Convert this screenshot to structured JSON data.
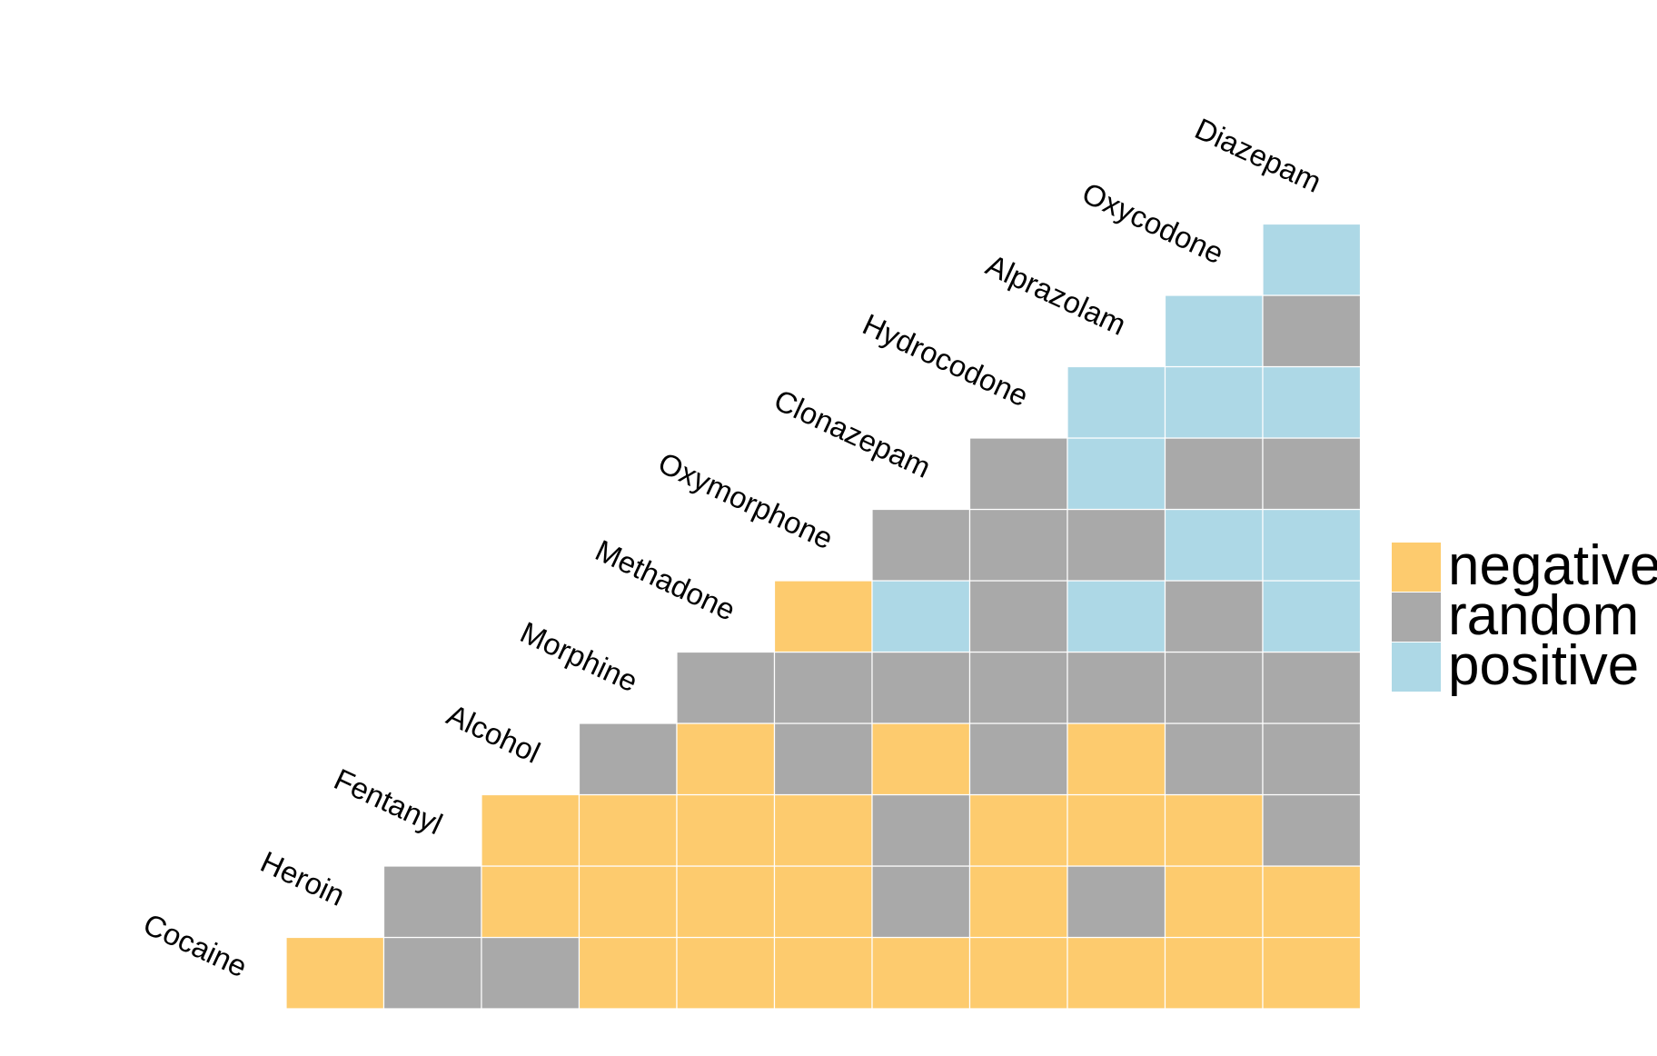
{
  "chart_data": {
    "type": "heatmap",
    "title": "",
    "xlabel": "",
    "ylabel": "",
    "grid": false,
    "legend_position": "right",
    "labels": [
      "Cocaine",
      "Heroin",
      "Fentanyl",
      "Alcohol",
      "Morphine",
      "Methadone",
      "Oxymorphone",
      "Clonazepam",
      "Hydrocodone",
      "Alprazolam",
      "Oxycodone",
      "Diazepam"
    ],
    "categories": [
      "negative",
      "random",
      "positive"
    ],
    "colors": {
      "negative": "#fdcb6e",
      "random": "#a9a9a9",
      "positive": "#add8e6"
    },
    "matrix": [
      [
        "negative",
        "random",
        "random",
        "negative",
        "negative",
        "negative",
        "negative",
        "negative",
        "negative",
        "negative",
        "negative"
      ],
      [
        "random",
        "negative",
        "negative",
        "negative",
        "negative",
        "random",
        "negative",
        "random",
        "negative",
        "negative"
      ],
      [
        "negative",
        "negative",
        "negative",
        "negative",
        "random",
        "negative",
        "negative",
        "negative",
        "random"
      ],
      [
        "random",
        "negative",
        "random",
        "negative",
        "random",
        "negative",
        "random",
        "random"
      ],
      [
        "random",
        "random",
        "random",
        "random",
        "random",
        "random",
        "random"
      ],
      [
        "negative",
        "positive",
        "random",
        "positive",
        "random",
        "positive"
      ],
      [
        "random",
        "random",
        "random",
        "positive",
        "positive"
      ],
      [
        "random",
        "positive",
        "random",
        "random"
      ],
      [
        "positive",
        "positive",
        "positive"
      ],
      [
        "positive",
        "random"
      ],
      [
        "positive"
      ]
    ]
  }
}
